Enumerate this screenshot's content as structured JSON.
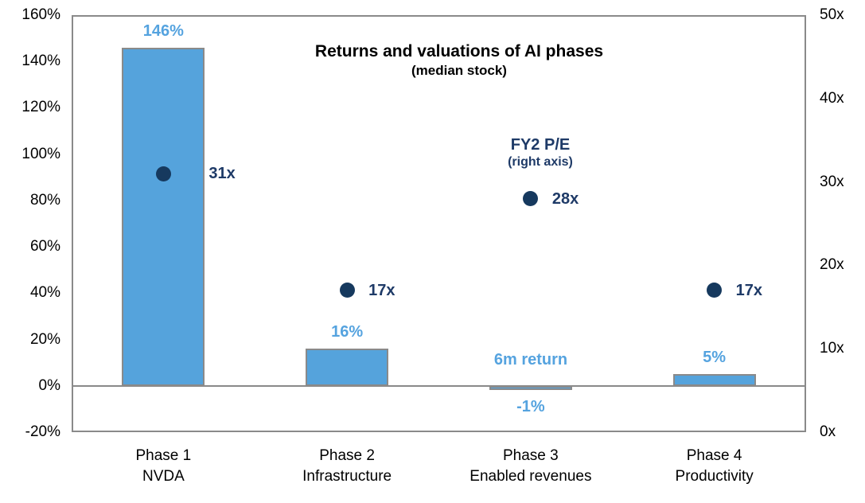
{
  "chart_data": {
    "type": "bar",
    "title": "Returns and valuations of AI phases",
    "subtitle": "(median stock)",
    "categories": [
      {
        "line1": "Phase 1",
        "line2": "NVDA"
      },
      {
        "line1": "Phase 2",
        "line2": "Infrastructure"
      },
      {
        "line1": "Phase 3",
        "line2": "Enabled revenues"
      },
      {
        "line1": "Phase 4",
        "line2": "Productivity"
      }
    ],
    "series": [
      {
        "name": "6m return",
        "type": "bar",
        "axis": "left",
        "values": [
          146,
          16,
          -1,
          5
        ],
        "labels": [
          "146%",
          "16%",
          "-1%",
          "5%"
        ]
      },
      {
        "name": "FY2 P/E",
        "type": "scatter",
        "axis": "right",
        "values": [
          31,
          17,
          28,
          17
        ],
        "labels": [
          "31x",
          "17x",
          "28x",
          "17x"
        ]
      }
    ],
    "left_axis": {
      "min": -20,
      "max": 160,
      "tick_values": [
        160,
        140,
        120,
        100,
        80,
        60,
        40,
        20,
        0,
        -20
      ],
      "tick_labels": [
        "160%",
        "140%",
        "120%",
        "100%",
        "80%",
        "60%",
        "40%",
        "20%",
        "0%",
        "-20%"
      ]
    },
    "right_axis": {
      "min": 0,
      "max": 50,
      "tick_values": [
        50,
        40,
        30,
        20,
        10,
        0
      ],
      "tick_labels": [
        "50x",
        "40x",
        "30x",
        "20x",
        "10x",
        "0x"
      ]
    },
    "annotations": {
      "fy2": {
        "line1": "FY2 P/E",
        "line2": "(right axis)"
      },
      "bar_series_note": {
        "text": "6m return"
      }
    },
    "layout_hints": {
      "grid": "off",
      "zero_line": "on",
      "legend": "inline-annotations"
    },
    "colors": {
      "bar_fill": "#55A3DC",
      "bar_border": "#8A8A8A",
      "frame": "#8A8A8A",
      "dot": "#16395E",
      "navy_text": "#1E3A67",
      "blue_text": "#55A3DF",
      "axis_text": "#000000",
      "title_text": "#000000"
    }
  }
}
